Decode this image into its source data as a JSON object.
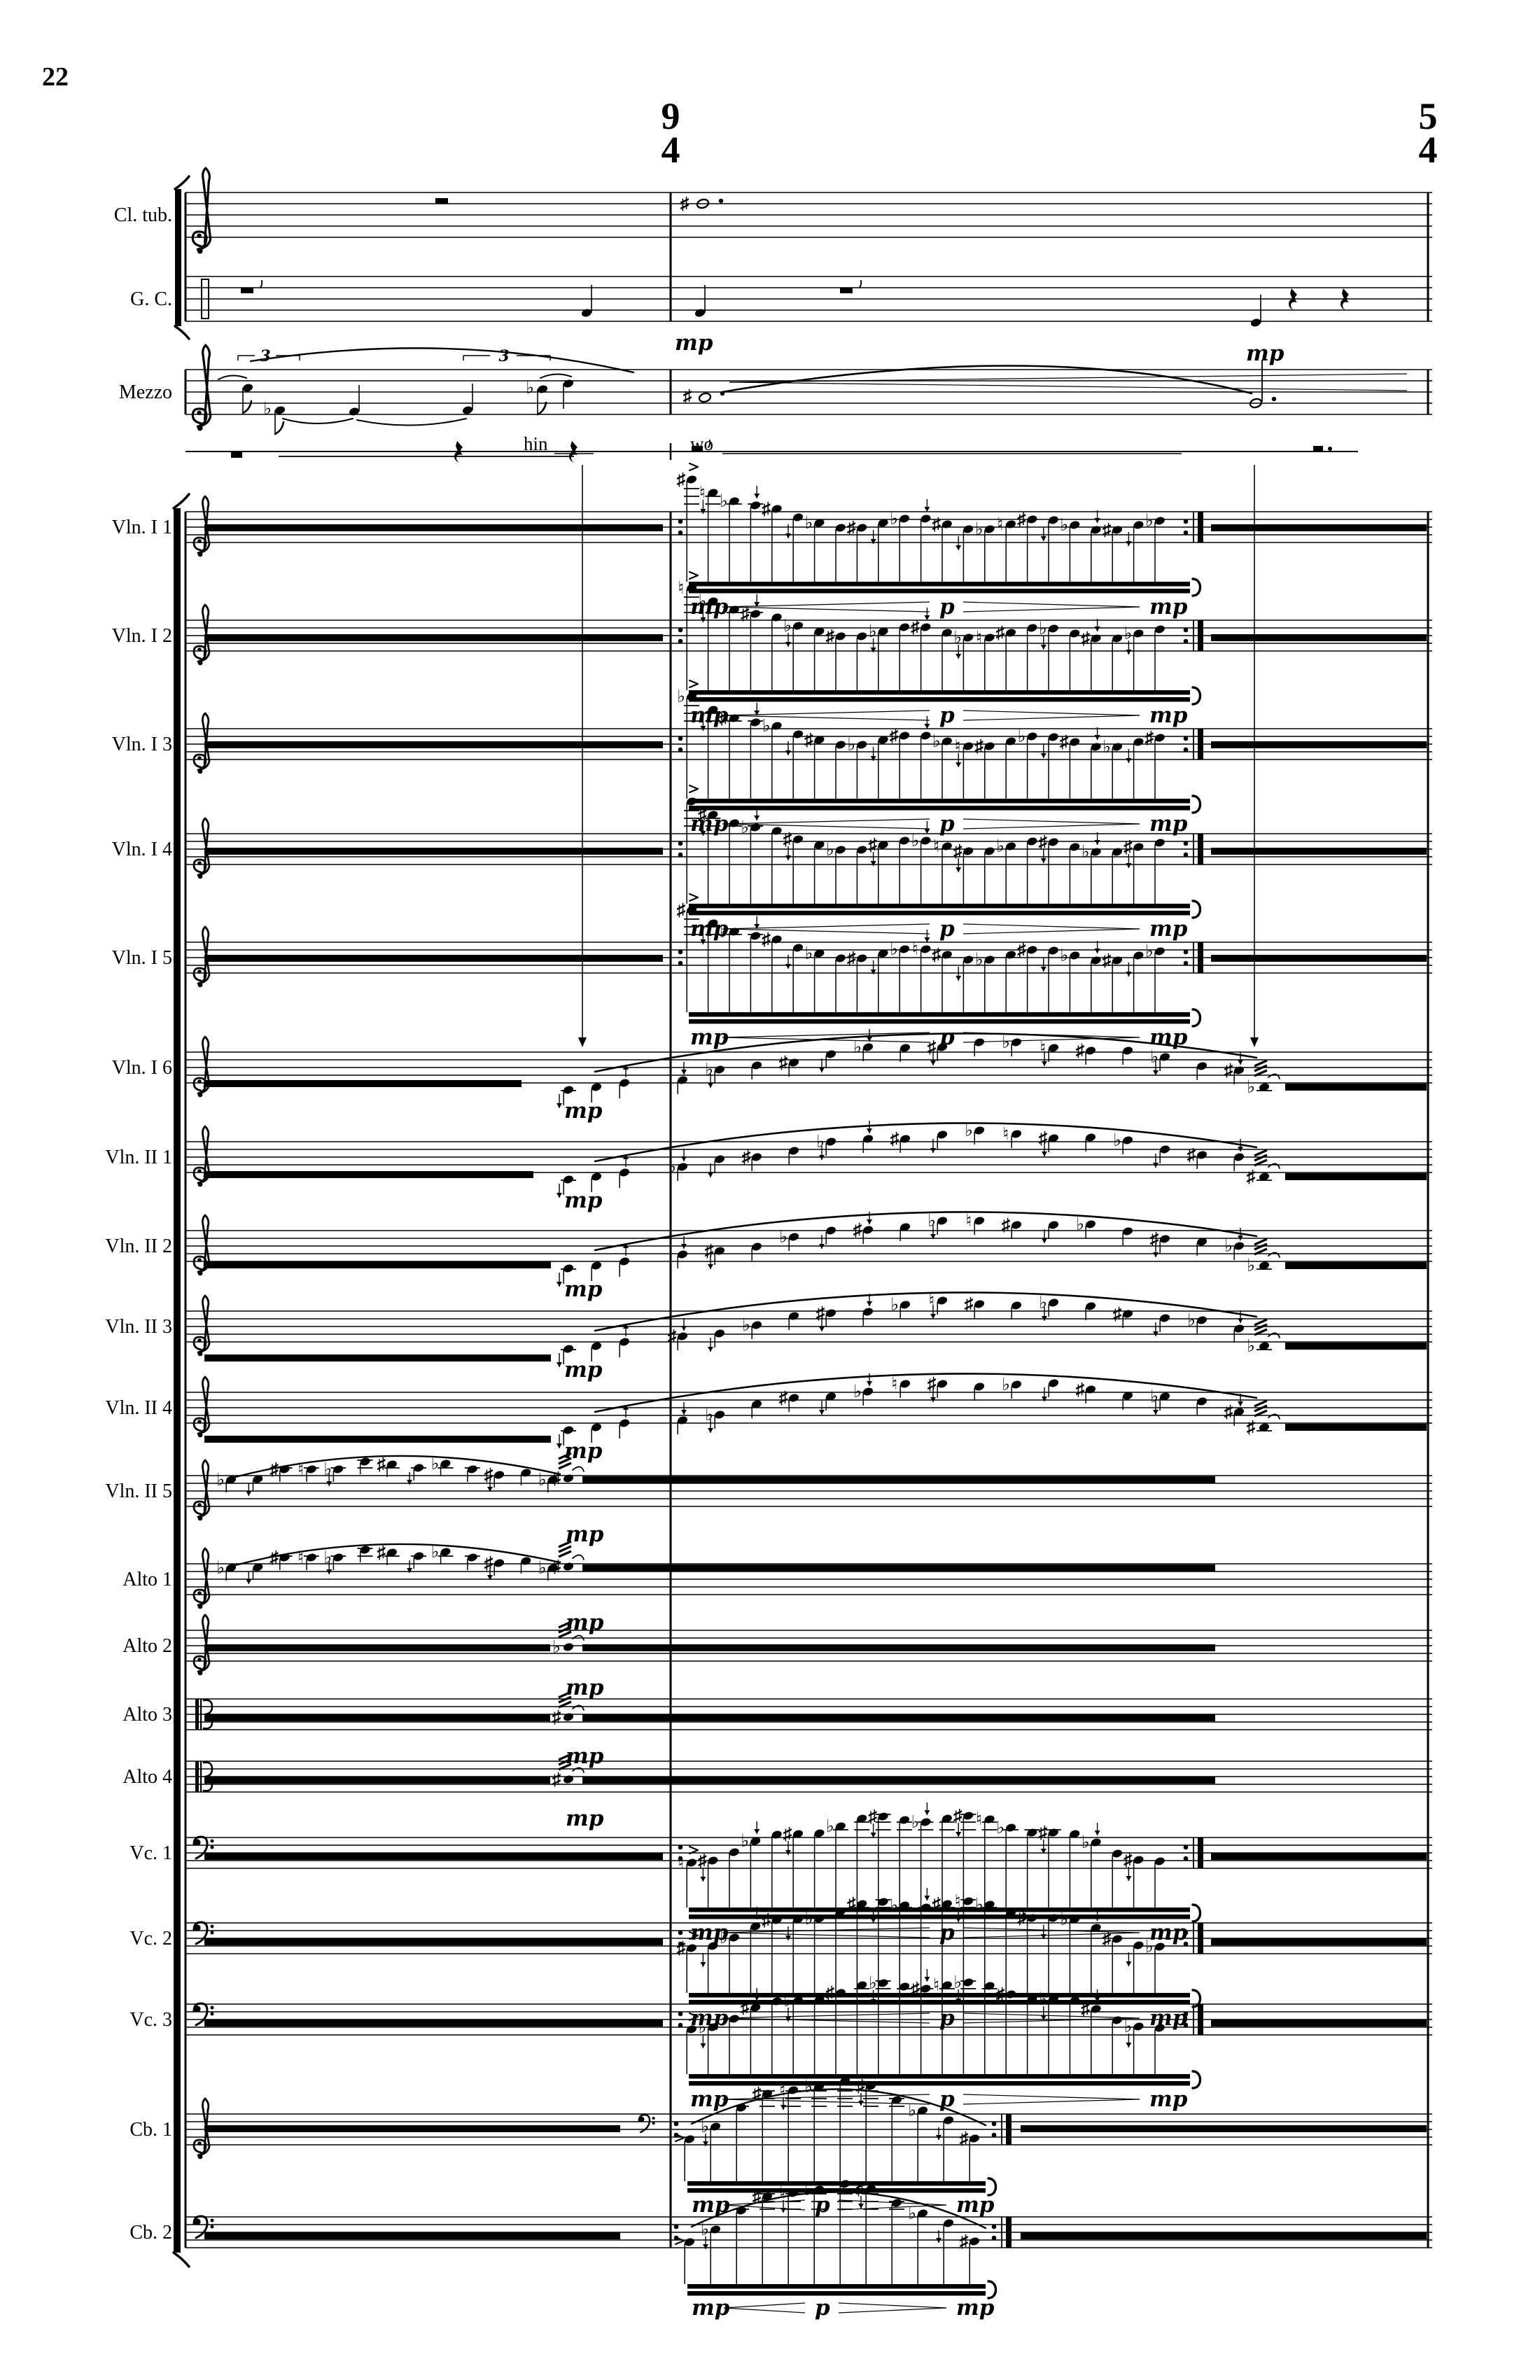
{
  "page": {
    "number": "22"
  },
  "time_signatures": [
    {
      "numerator": "9",
      "denominator": "4",
      "position": "mid-system barline"
    },
    {
      "numerator": "5",
      "denominator": "4",
      "position": "system end (courtesy)"
    }
  ],
  "glyphs": {
    "sharp": "♯",
    "flat": "♭",
    "natural": "♮"
  },
  "staves": [
    {
      "label": "Cl. tub.",
      "clef": "treble",
      "content": "rest; sharp dotted whole note in 9/4 bar",
      "dynamics": []
    },
    {
      "label": "G. C.",
      "clef": "none",
      "content": "block rests and single quarter-note strokes",
      "dynamics": [
        "mp"
      ]
    },
    {
      "label": "Mezzo",
      "clef": "treble",
      "content": "slurred triplet phrase, then sharp dotted whole note tied to dotted half",
      "dynamics": [
        "mp"
      ],
      "lyrics": [
        "hin",
        "wo"
      ],
      "tuplets": [
        "3",
        "3"
      ]
    },
    {
      "label": "",
      "clef": "none",
      "content": "cue line with rests",
      "dynamics": []
    },
    {
      "label": "Vln. I 1",
      "clef": "treble",
      "content": "cluster band; repeated accented 32nd run",
      "dynamics": [
        "mp",
        "p",
        "mp"
      ]
    },
    {
      "label": "Vln. I 2",
      "clef": "treble",
      "content": "cluster band; repeated accented 32nd run",
      "dynamics": [
        "mp",
        "p",
        "mp"
      ]
    },
    {
      "label": "Vln. I 3",
      "clef": "treble",
      "content": "cluster band; repeated accented 32nd run",
      "dynamics": [
        "mp",
        "p",
        "mp"
      ]
    },
    {
      "label": "Vln. I 4",
      "clef": "treble",
      "content": "cluster band; repeated accented 32nd run",
      "dynamics": [
        "mp",
        "p",
        "mp"
      ]
    },
    {
      "label": "Vln. I 5",
      "clef": "treble",
      "content": "cluster band; repeated accented 32nd run",
      "dynamics": [
        "mp",
        "p",
        "mp"
      ]
    },
    {
      "label": "Vln. I 6",
      "clef": "treble",
      "content": "cluster band; long slurred run; tremolo hold",
      "dynamics": [
        "mp"
      ]
    },
    {
      "label": "Vln. II 1",
      "clef": "treble",
      "content": "cluster band; long slurred run; tremolo hold",
      "dynamics": [
        "mp"
      ]
    },
    {
      "label": "Vln. II 2",
      "clef": "treble",
      "content": "cluster band; long slurred run; tremolo hold",
      "dynamics": [
        "mp"
      ]
    },
    {
      "label": "Vln. II 3",
      "clef": "treble",
      "content": "cluster band; long slurred run; tremolo hold",
      "dynamics": [
        "mp"
      ]
    },
    {
      "label": "Vln. II 4",
      "clef": "treble",
      "content": "cluster band; long slurred run; tremolo hold",
      "dynamics": [
        "mp"
      ]
    },
    {
      "label": "Vln. II 5",
      "clef": "treble",
      "content": "slurred run; tremolo hold; closing run",
      "dynamics": [
        "mp"
      ]
    },
    {
      "label": "Alto 1",
      "clef": "treble",
      "content": "slurred run; tremolo hold; closing run",
      "dynamics": [
        "mp"
      ]
    },
    {
      "label": "Alto 2",
      "clef": "treble",
      "content": "cluster band; tremolo; closing run",
      "dynamics": [
        "mp"
      ]
    },
    {
      "label": "Alto 3",
      "clef": "alto",
      "content": "cluster band; tremolo; closing run",
      "dynamics": [
        "mp"
      ]
    },
    {
      "label": "Alto 4",
      "clef": "alto",
      "content": "cluster band; tremolo; closing run",
      "dynamics": [
        "mp"
      ]
    },
    {
      "label": "Vc. 1",
      "clef": "bass",
      "content": "cluster band; repeated arched 32nd run",
      "dynamics": [
        "mp",
        "p",
        "mp"
      ]
    },
    {
      "label": "Vc. 2",
      "clef": "bass",
      "content": "cluster band; repeated arched 32nd run",
      "dynamics": [
        "mp",
        "p",
        "mp"
      ]
    },
    {
      "label": "Vc. 3",
      "clef": "bass",
      "content": "cluster band; repeated arched 32nd run",
      "dynamics": [
        "mp",
        "p",
        "mp"
      ]
    },
    {
      "label": "Cb. 1",
      "clef": "treble",
      "clef_change": "bass",
      "content": "cluster band; short repeated arched run; cluster band",
      "dynamics": [
        "mp",
        "p",
        "mp"
      ]
    },
    {
      "label": "Cb. 2",
      "clef": "bass",
      "content": "cluster band; short repeated arched run; cluster band",
      "dynamics": [
        "mp",
        "p",
        "mp"
      ]
    }
  ]
}
